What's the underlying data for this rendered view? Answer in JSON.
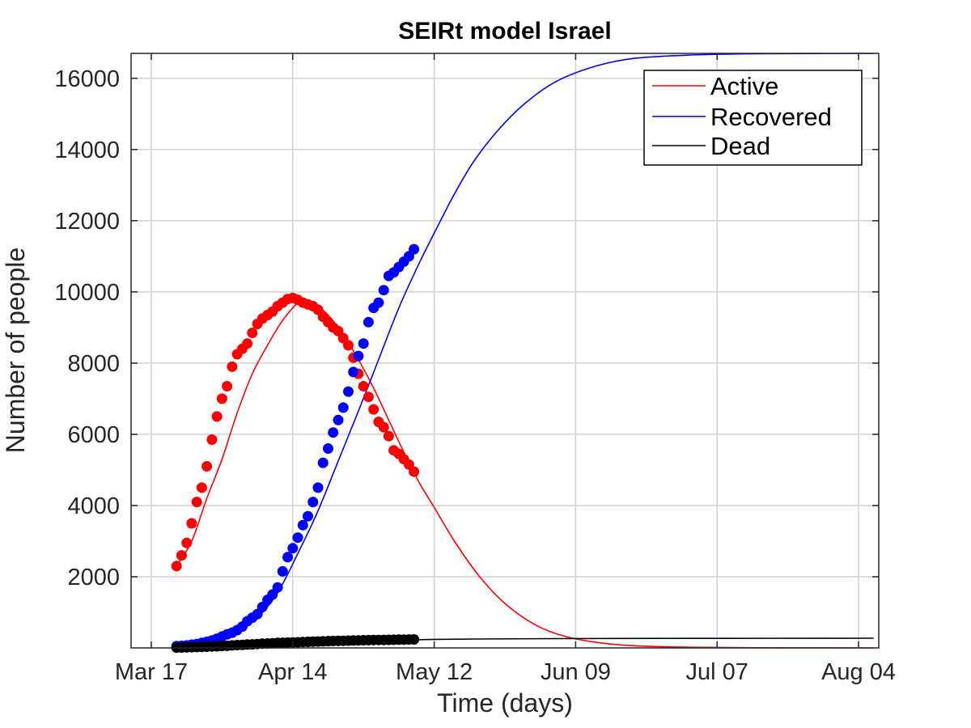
{
  "chart_data": {
    "type": "line",
    "title": "SEIRt model Israel",
    "xlabel": "Time (days)",
    "ylabel": "Number of people",
    "x_type": "date",
    "xlim": [
      "2020-03-13",
      "2020-08-08"
    ],
    "ylim": [
      0,
      16700
    ],
    "xticks": [
      "2020-03-17",
      "2020-04-14",
      "2020-05-12",
      "2020-06-09",
      "2020-07-07",
      "2020-08-04"
    ],
    "xtick_labels": [
      "Mar 17",
      "Apr 14",
      "May 12",
      "Jun 09",
      "Jul 07",
      "Aug 04"
    ],
    "yticks": [
      2000,
      4000,
      6000,
      8000,
      10000,
      12000,
      14000,
      16000
    ],
    "ytick_labels": [
      "2000",
      "4000",
      "6000",
      "8000",
      "10000",
      "12000",
      "14000",
      "16000"
    ],
    "grid": true,
    "legend": "top-right",
    "legend_labels": [
      "Active",
      "Recovered",
      "Dead"
    ],
    "colors": {
      "active": "#ff0000",
      "recovered": "#0000ff",
      "dead": "#000000"
    },
    "model_curves": [
      {
        "name": "Active",
        "color": "#ff0000",
        "points": [
          [
            "2020-03-22",
            2300
          ],
          [
            "2020-03-25",
            3000
          ],
          [
            "2020-03-28",
            4200
          ],
          [
            "2020-03-31",
            5300
          ],
          [
            "2020-04-03",
            6600
          ],
          [
            "2020-04-06",
            7700
          ],
          [
            "2020-04-09",
            8500
          ],
          [
            "2020-04-12",
            9200
          ],
          [
            "2020-04-15",
            9700
          ],
          [
            "2020-04-16",
            9780
          ],
          [
            "2020-04-18",
            9700
          ],
          [
            "2020-04-21",
            9350
          ],
          [
            "2020-04-24",
            8800
          ],
          [
            "2020-04-27",
            8100
          ],
          [
            "2020-04-30",
            7300
          ],
          [
            "2020-05-03",
            6400
          ],
          [
            "2020-05-06",
            5500
          ],
          [
            "2020-05-09",
            4650
          ],
          [
            "2020-05-12",
            3950
          ],
          [
            "2020-05-16",
            3000
          ],
          [
            "2020-05-21",
            2000
          ],
          [
            "2020-05-26",
            1250
          ],
          [
            "2020-06-01",
            650
          ],
          [
            "2020-06-07",
            320
          ],
          [
            "2020-06-14",
            140
          ],
          [
            "2020-06-21",
            60
          ],
          [
            "2020-07-01",
            20
          ],
          [
            "2020-07-15",
            5
          ],
          [
            "2020-08-07",
            0
          ]
        ]
      },
      {
        "name": "Recovered",
        "color": "#0000ff",
        "points": [
          [
            "2020-03-22",
            50
          ],
          [
            "2020-03-26",
            110
          ],
          [
            "2020-03-30",
            250
          ],
          [
            "2020-04-03",
            450
          ],
          [
            "2020-04-07",
            850
          ],
          [
            "2020-04-11",
            1550
          ],
          [
            "2020-04-15",
            2650
          ],
          [
            "2020-04-19",
            3850
          ],
          [
            "2020-04-23",
            5250
          ],
          [
            "2020-04-27",
            6650
          ],
          [
            "2020-05-01",
            8100
          ],
          [
            "2020-05-05",
            9550
          ],
          [
            "2020-05-09",
            10800
          ],
          [
            "2020-05-12",
            11650
          ],
          [
            "2020-05-16",
            12750
          ],
          [
            "2020-05-20",
            13700
          ],
          [
            "2020-05-25",
            14600
          ],
          [
            "2020-05-30",
            15300
          ],
          [
            "2020-06-05",
            15900
          ],
          [
            "2020-06-12",
            16300
          ],
          [
            "2020-06-20",
            16550
          ],
          [
            "2020-07-01",
            16650
          ],
          [
            "2020-07-15",
            16690
          ],
          [
            "2020-08-07",
            16700
          ]
        ]
      },
      {
        "name": "Dead",
        "color": "#000000",
        "points": [
          [
            "2020-03-22",
            10
          ],
          [
            "2020-03-30",
            40
          ],
          [
            "2020-04-07",
            90
          ],
          [
            "2020-04-15",
            140
          ],
          [
            "2020-04-23",
            180
          ],
          [
            "2020-05-01",
            210
          ],
          [
            "2020-05-10",
            235
          ],
          [
            "2020-05-20",
            250
          ],
          [
            "2020-06-05",
            262
          ],
          [
            "2020-07-01",
            268
          ],
          [
            "2020-08-07",
            272
          ]
        ]
      }
    ],
    "observed": [
      {
        "name": "Active",
        "color": "#ff0000",
        "points": [
          [
            "2020-03-22",
            2300
          ],
          [
            "2020-03-23",
            2600
          ],
          [
            "2020-03-24",
            2950
          ],
          [
            "2020-03-25",
            3500
          ],
          [
            "2020-03-26",
            4100
          ],
          [
            "2020-03-27",
            4500
          ],
          [
            "2020-03-28",
            5100
          ],
          [
            "2020-03-29",
            5850
          ],
          [
            "2020-03-30",
            6500
          ],
          [
            "2020-03-31",
            7000
          ],
          [
            "2020-04-01",
            7350
          ],
          [
            "2020-04-02",
            7900
          ],
          [
            "2020-04-03",
            8250
          ],
          [
            "2020-04-04",
            8400
          ],
          [
            "2020-04-05",
            8550
          ],
          [
            "2020-04-06",
            8850
          ],
          [
            "2020-04-07",
            9100
          ],
          [
            "2020-04-08",
            9250
          ],
          [
            "2020-04-09",
            9350
          ],
          [
            "2020-04-10",
            9450
          ],
          [
            "2020-04-11",
            9600
          ],
          [
            "2020-04-12",
            9700
          ],
          [
            "2020-04-13",
            9800
          ],
          [
            "2020-04-14",
            9830
          ],
          [
            "2020-04-15",
            9780
          ],
          [
            "2020-04-16",
            9700
          ],
          [
            "2020-04-17",
            9650
          ],
          [
            "2020-04-18",
            9600
          ],
          [
            "2020-04-19",
            9500
          ],
          [
            "2020-04-20",
            9300
          ],
          [
            "2020-04-21",
            9150
          ],
          [
            "2020-04-22",
            9000
          ],
          [
            "2020-04-23",
            8900
          ],
          [
            "2020-04-24",
            8700
          ],
          [
            "2020-04-25",
            8500
          ],
          [
            "2020-04-26",
            8150
          ],
          [
            "2020-04-27",
            7700
          ],
          [
            "2020-04-28",
            7350
          ],
          [
            "2020-04-29",
            7050
          ],
          [
            "2020-04-30",
            6700
          ],
          [
            "2020-05-01",
            6350
          ],
          [
            "2020-05-02",
            6200
          ],
          [
            "2020-05-03",
            5950
          ],
          [
            "2020-05-04",
            5550
          ],
          [
            "2020-05-05",
            5450
          ],
          [
            "2020-05-06",
            5300
          ],
          [
            "2020-05-07",
            5150
          ],
          [
            "2020-05-08",
            4950
          ]
        ]
      },
      {
        "name": "Recovered",
        "color": "#0000ff",
        "points": [
          [
            "2020-03-22",
            50
          ],
          [
            "2020-03-23",
            60
          ],
          [
            "2020-03-24",
            70
          ],
          [
            "2020-03-25",
            90
          ],
          [
            "2020-03-26",
            110
          ],
          [
            "2020-03-27",
            140
          ],
          [
            "2020-03-28",
            170
          ],
          [
            "2020-03-29",
            210
          ],
          [
            "2020-03-30",
            260
          ],
          [
            "2020-03-31",
            320
          ],
          [
            "2020-04-01",
            380
          ],
          [
            "2020-04-02",
            430
          ],
          [
            "2020-04-03",
            500
          ],
          [
            "2020-04-04",
            600
          ],
          [
            "2020-04-05",
            750
          ],
          [
            "2020-04-06",
            850
          ],
          [
            "2020-04-07",
            950
          ],
          [
            "2020-04-08",
            1150
          ],
          [
            "2020-04-09",
            1350
          ],
          [
            "2020-04-10",
            1500
          ],
          [
            "2020-04-11",
            1700
          ],
          [
            "2020-04-12",
            2150
          ],
          [
            "2020-04-13",
            2550
          ],
          [
            "2020-04-14",
            2800
          ],
          [
            "2020-04-15",
            3100
          ],
          [
            "2020-04-16",
            3450
          ],
          [
            "2020-04-17",
            3700
          ],
          [
            "2020-04-18",
            4100
          ],
          [
            "2020-04-19",
            4500
          ],
          [
            "2020-04-20",
            5200
          ],
          [
            "2020-04-21",
            5600
          ],
          [
            "2020-04-22",
            6050
          ],
          [
            "2020-04-23",
            6400
          ],
          [
            "2020-04-24",
            6750
          ],
          [
            "2020-04-25",
            7200
          ],
          [
            "2020-04-26",
            7750
          ],
          [
            "2020-04-27",
            8200
          ],
          [
            "2020-04-28",
            8550
          ],
          [
            "2020-04-29",
            9150
          ],
          [
            "2020-04-30",
            9550
          ],
          [
            "2020-05-01",
            9700
          ],
          [
            "2020-05-02",
            10050
          ],
          [
            "2020-05-03",
            10450
          ],
          [
            "2020-05-04",
            10550
          ],
          [
            "2020-05-05",
            10700
          ],
          [
            "2020-05-06",
            10850
          ],
          [
            "2020-05-07",
            11000
          ],
          [
            "2020-05-08",
            11200
          ]
        ]
      },
      {
        "name": "Dead",
        "color": "#000000",
        "points": [
          [
            "2020-03-22",
            10
          ],
          [
            "2020-03-23",
            12
          ],
          [
            "2020-03-24",
            15
          ],
          [
            "2020-03-25",
            20
          ],
          [
            "2020-03-26",
            25
          ],
          [
            "2020-03-27",
            30
          ],
          [
            "2020-03-28",
            35
          ],
          [
            "2020-03-29",
            40
          ],
          [
            "2020-03-30",
            45
          ],
          [
            "2020-03-31",
            55
          ],
          [
            "2020-04-01",
            60
          ],
          [
            "2020-04-02",
            70
          ],
          [
            "2020-04-03",
            80
          ],
          [
            "2020-04-04",
            85
          ],
          [
            "2020-04-05",
            95
          ],
          [
            "2020-04-06",
            100
          ],
          [
            "2020-04-07",
            110
          ],
          [
            "2020-04-08",
            120
          ],
          [
            "2020-04-09",
            125
          ],
          [
            "2020-04-10",
            130
          ],
          [
            "2020-04-11",
            140
          ],
          [
            "2020-04-12",
            145
          ],
          [
            "2020-04-13",
            150
          ],
          [
            "2020-04-14",
            155
          ],
          [
            "2020-04-15",
            160
          ],
          [
            "2020-04-16",
            165
          ],
          [
            "2020-04-17",
            170
          ],
          [
            "2020-04-18",
            175
          ],
          [
            "2020-04-19",
            180
          ],
          [
            "2020-04-20",
            185
          ],
          [
            "2020-04-21",
            190
          ],
          [
            "2020-04-22",
            195
          ],
          [
            "2020-04-23",
            198
          ],
          [
            "2020-04-24",
            200
          ],
          [
            "2020-04-25",
            205
          ],
          [
            "2020-04-26",
            210
          ],
          [
            "2020-04-27",
            212
          ],
          [
            "2020-04-28",
            215
          ],
          [
            "2020-04-29",
            218
          ],
          [
            "2020-04-30",
            220
          ],
          [
            "2020-05-01",
            223
          ],
          [
            "2020-05-02",
            225
          ],
          [
            "2020-05-03",
            228
          ],
          [
            "2020-05-04",
            230
          ],
          [
            "2020-05-05",
            232
          ],
          [
            "2020-05-06",
            234
          ],
          [
            "2020-05-07",
            236
          ],
          [
            "2020-05-08",
            238
          ]
        ]
      }
    ]
  }
}
